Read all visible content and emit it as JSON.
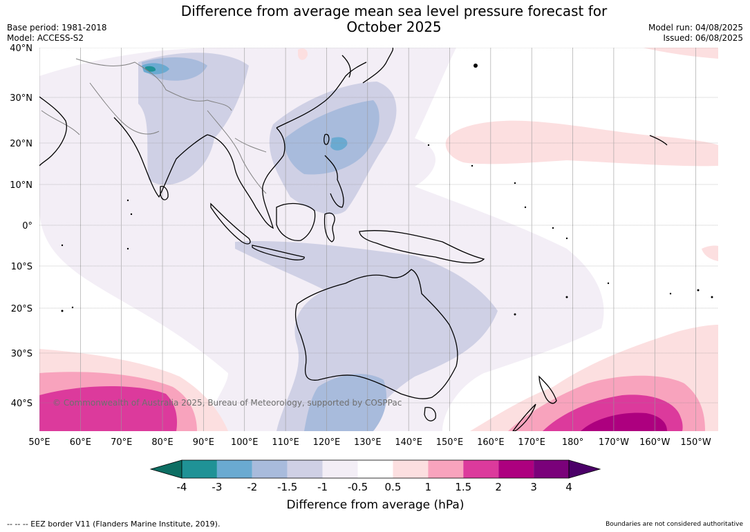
{
  "header": {
    "title_line1": "Difference from average mean sea level pressure forecast for",
    "title_line2": "October 2025",
    "base_period": "Base period: 1981-2018",
    "model": "Model: ACCESS-S2",
    "model_run": "Model run: 04/08/2025",
    "issued": "Issued: 06/08/2025"
  },
  "map": {
    "lat_labels": [
      "40°N",
      "30°N",
      "20°N",
      "10°N",
      "0°",
      "10°S",
      "20°S",
      "30°S",
      "40°S"
    ],
    "lon_labels": [
      "50°E",
      "60°E",
      "70°E",
      "80°E",
      "90°E",
      "100°E",
      "110°E",
      "120°E",
      "130°E",
      "140°E",
      "150°E",
      "160°E",
      "170°E",
      "180°",
      "170°W",
      "160°W",
      "150°W"
    ],
    "copyright": "© Commonwealth of Australia 2025, Bureau of Meteorology, supported by COSPPac",
    "colors": {
      "land_border": "#000000",
      "country_border": "#808080",
      "grid": "#9a9a9a"
    }
  },
  "colorbar": {
    "ticks": [
      "-4",
      "-3",
      "-2",
      "-1.5",
      "-1",
      "-0.5",
      "0.5",
      "1",
      "1.5",
      "2",
      "3",
      "4"
    ],
    "label": "Difference from average (hPa)",
    "colors": [
      "#0d6e63",
      "#1f9296",
      "#6aaad1",
      "#a8bbdc",
      "#cfd0e5",
      "#f3eef6",
      "#ffffff",
      "#fcdfe0",
      "#f8a3bd",
      "#dc3a9c",
      "#ad007f",
      "#7a017a",
      "#4b0068"
    ]
  },
  "footer": {
    "eez": "-- -- -- EEZ border V11 (Flanders Marine Institute, 2019).",
    "boundaries": "Boundaries are not considered authoritative"
  }
}
